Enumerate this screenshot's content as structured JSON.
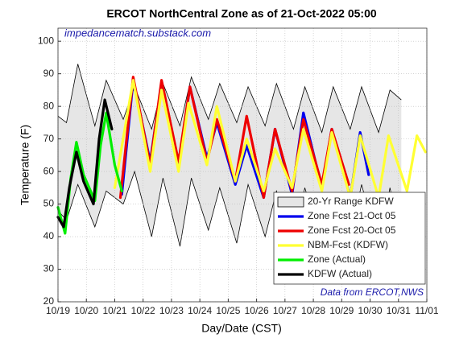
{
  "chart_data": {
    "type": "line",
    "title": "ERCOT NorthCentral Zone as of 21-Oct-2022 05:00",
    "xlabel": "Day/Date (CST)",
    "ylabel": "Temperature (F)",
    "annotations": [
      "impedancematch.substack.com",
      "Data from ERCOT,NWS"
    ],
    "xlim": [
      0,
      13
    ],
    "xticks": [
      {
        "value": 0,
        "label": "10/19"
      },
      {
        "value": 1,
        "label": "10/20"
      },
      {
        "value": 2,
        "label": "10/21"
      },
      {
        "value": 3,
        "label": "10/22"
      },
      {
        "value": 4,
        "label": "10/23"
      },
      {
        "value": 5,
        "label": "10/24"
      },
      {
        "value": 6,
        "label": "10/25"
      },
      {
        "value": 7,
        "label": "10/26"
      },
      {
        "value": 8,
        "label": "10/27"
      },
      {
        "value": 9,
        "label": "10/28"
      },
      {
        "value": 10,
        "label": "10/29"
      },
      {
        "value": 11,
        "label": "10/30"
      },
      {
        "value": 12,
        "label": "10/31"
      },
      {
        "value": 13,
        "label": "11/01"
      }
    ],
    "ylim": [
      20,
      104
    ],
    "yticks": [
      20,
      30,
      40,
      50,
      60,
      70,
      80,
      90,
      100
    ],
    "grid": true,
    "legend": "lower right",
    "series": [
      {
        "name": "20-Yr Range KDFW",
        "kind": "band",
        "color": "#e6e6e6",
        "x": [
          0,
          0.3,
          0.7,
          1.3,
          1.7,
          2.3,
          2.7,
          3.3,
          3.7,
          4.3,
          4.7,
          5.3,
          5.7,
          6.3,
          6.7,
          7.3,
          7.7,
          8.3,
          8.7,
          9.3,
          9.7,
          10.3,
          10.7,
          11.3,
          11.7,
          12.1
        ],
        "values": [
          77,
          75,
          93,
          74,
          88,
          76,
          86,
          73,
          87,
          74,
          89,
          76,
          87,
          75,
          86,
          74,
          87,
          73,
          86,
          72,
          86,
          73,
          86,
          72,
          85,
          82
        ],
        "lower": [
          48,
          45,
          56,
          43,
          54,
          50,
          60,
          40,
          58,
          37,
          58,
          42,
          55,
          38,
          56,
          40,
          54,
          39,
          55,
          37,
          52,
          40,
          56,
          36,
          55,
          38
        ]
      },
      {
        "name": "Zone Fcst 21-Oct 05",
        "color": "#0000ee",
        "x": [
          2.25,
          2.65,
          3.25,
          3.65,
          4.25,
          4.65,
          5.25,
          5.6,
          6.25,
          6.65,
          7.25,
          7.65,
          8.25,
          8.65,
          9.3,
          9.65,
          10.3,
          10.65,
          10.95
        ],
        "values": [
          53,
          88,
          63,
          87,
          62,
          86,
          64,
          75,
          56,
          68,
          52,
          73,
          53,
          78,
          55,
          73,
          52,
          72,
          59
        ]
      },
      {
        "name": "Zone Fcst 20-Oct 05",
        "color": "#ee0000",
        "x": [
          2.2,
          2.65,
          3.25,
          3.65,
          4.25,
          4.65,
          5.25,
          5.6,
          6.25,
          6.65,
          7.25,
          7.65,
          8.25,
          8.65,
          9.3,
          9.65,
          10.25
        ],
        "values": [
          52,
          89,
          62,
          88,
          63,
          86,
          63,
          76,
          57,
          77,
          52,
          73,
          54,
          76,
          56,
          73,
          56
        ]
      },
      {
        "name": "NBM-Fcst (KDFW)",
        "color": "#ffff33",
        "x": [
          2.0,
          2.65,
          3.25,
          3.65,
          4.25,
          4.6,
          5.25,
          5.6,
          6.25,
          6.65,
          7.25,
          7.65,
          8.25,
          8.65,
          9.3,
          9.65,
          10.3,
          10.65,
          11.3,
          11.65,
          12.3,
          12.65,
          12.95
        ],
        "values": [
          55,
          88,
          60,
          85,
          60,
          81,
          62,
          80,
          57,
          70,
          54,
          67,
          55,
          73,
          54,
          72,
          52,
          71,
          52,
          71,
          54,
          71,
          66
        ]
      },
      {
        "name": "Zone (Actual)",
        "color": "#00ee00",
        "x": [
          0,
          0.25,
          0.45,
          0.65,
          0.9,
          1.3,
          1.5,
          1.7,
          2.0,
          2.25
        ],
        "values": [
          49,
          41,
          58,
          69,
          59,
          51,
          68,
          78,
          62,
          54
        ]
      },
      {
        "name": "KDFW (Actual)",
        "color": "#000000",
        "x": [
          0,
          0.2,
          0.4,
          0.65,
          0.9,
          1.25,
          1.45,
          1.65,
          1.9
        ],
        "values": [
          46,
          43,
          55,
          66,
          57,
          50,
          70,
          82,
          73
        ]
      }
    ]
  }
}
